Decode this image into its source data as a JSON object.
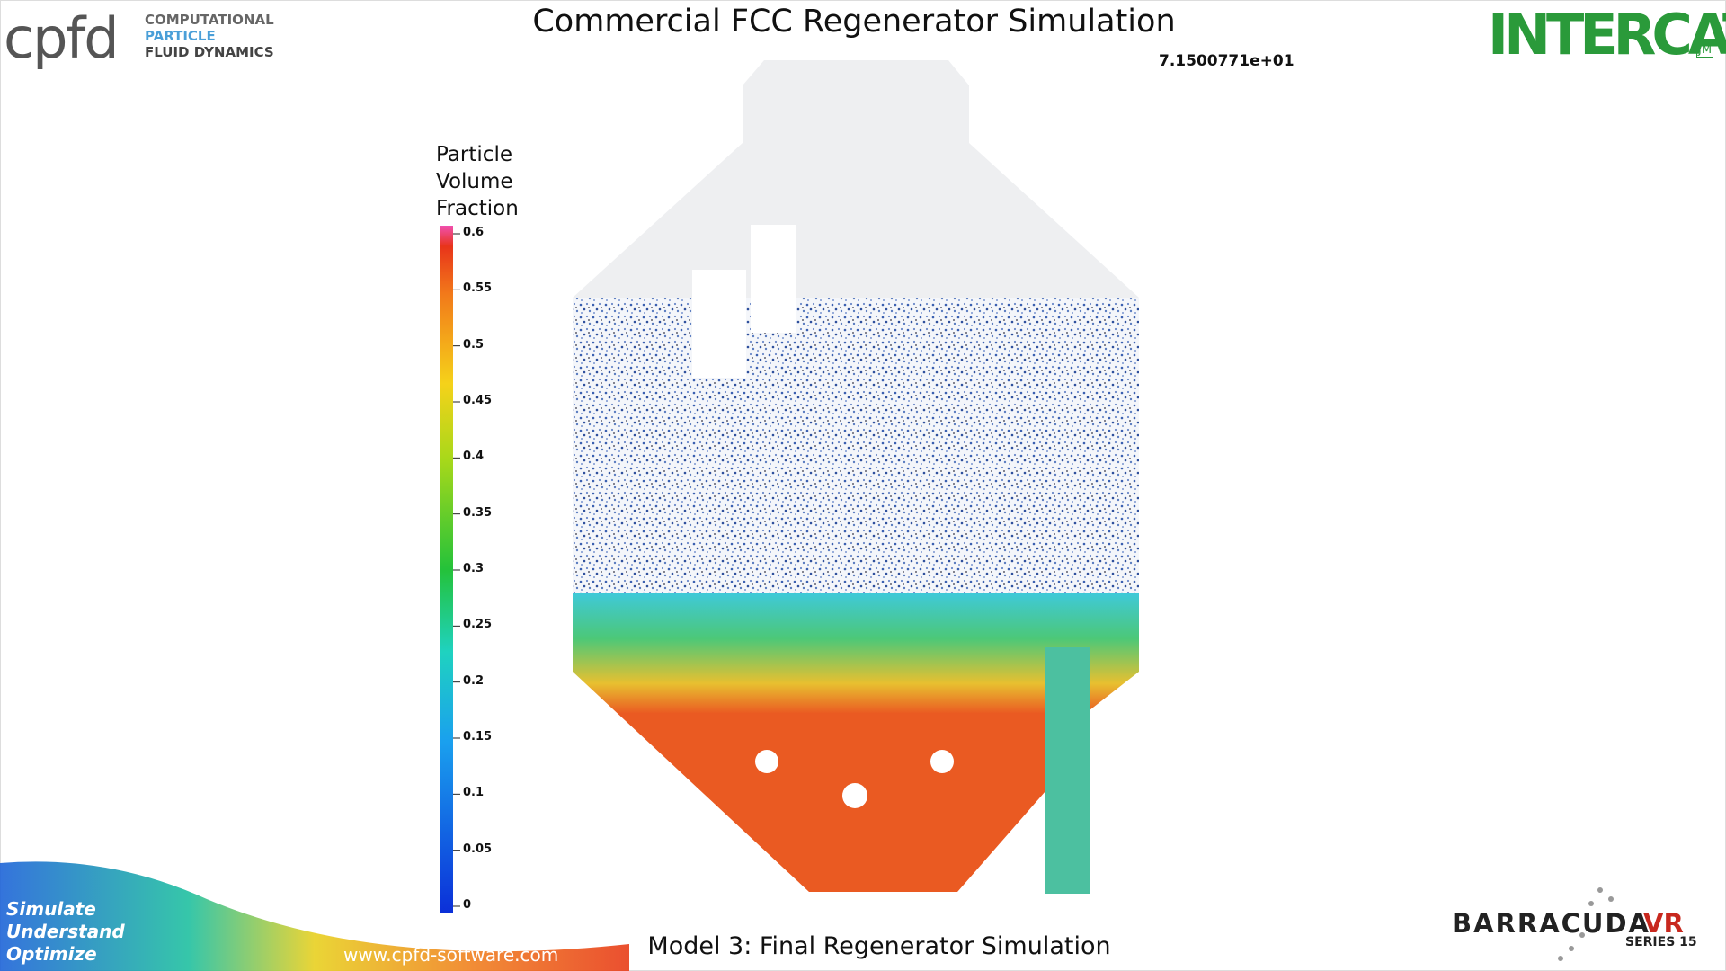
{
  "header": {
    "title": "Commercial FCC Regenerator Simulation",
    "timestamp": "7.1500771e+01"
  },
  "logos": {
    "cpfd": {
      "mark": "cpfd",
      "lines": [
        "COMPUTATIONAL",
        "PARTICLE",
        "FLUID DYNAMICS"
      ]
    },
    "intercat": {
      "name": "INTERCAT",
      "badge": "JM"
    },
    "barracuda": {
      "name": "BARRACUDA",
      "suffix": "VR",
      "series": "SERIES 15"
    }
  },
  "colorbar": {
    "title": [
      "Particle",
      "Volume",
      "Fraction"
    ],
    "ticks": [
      0.6,
      0.55,
      0.5,
      0.45,
      0.4,
      0.35,
      0.3,
      0.25,
      0.2,
      0.15,
      0.1,
      0.05,
      0
    ]
  },
  "footer": {
    "tagline": [
      "Simulate",
      "Understand",
      "Optimize"
    ],
    "url": "www.cpfd-software.com",
    "caption": "Model 3: Final Regenerator Simulation"
  }
}
